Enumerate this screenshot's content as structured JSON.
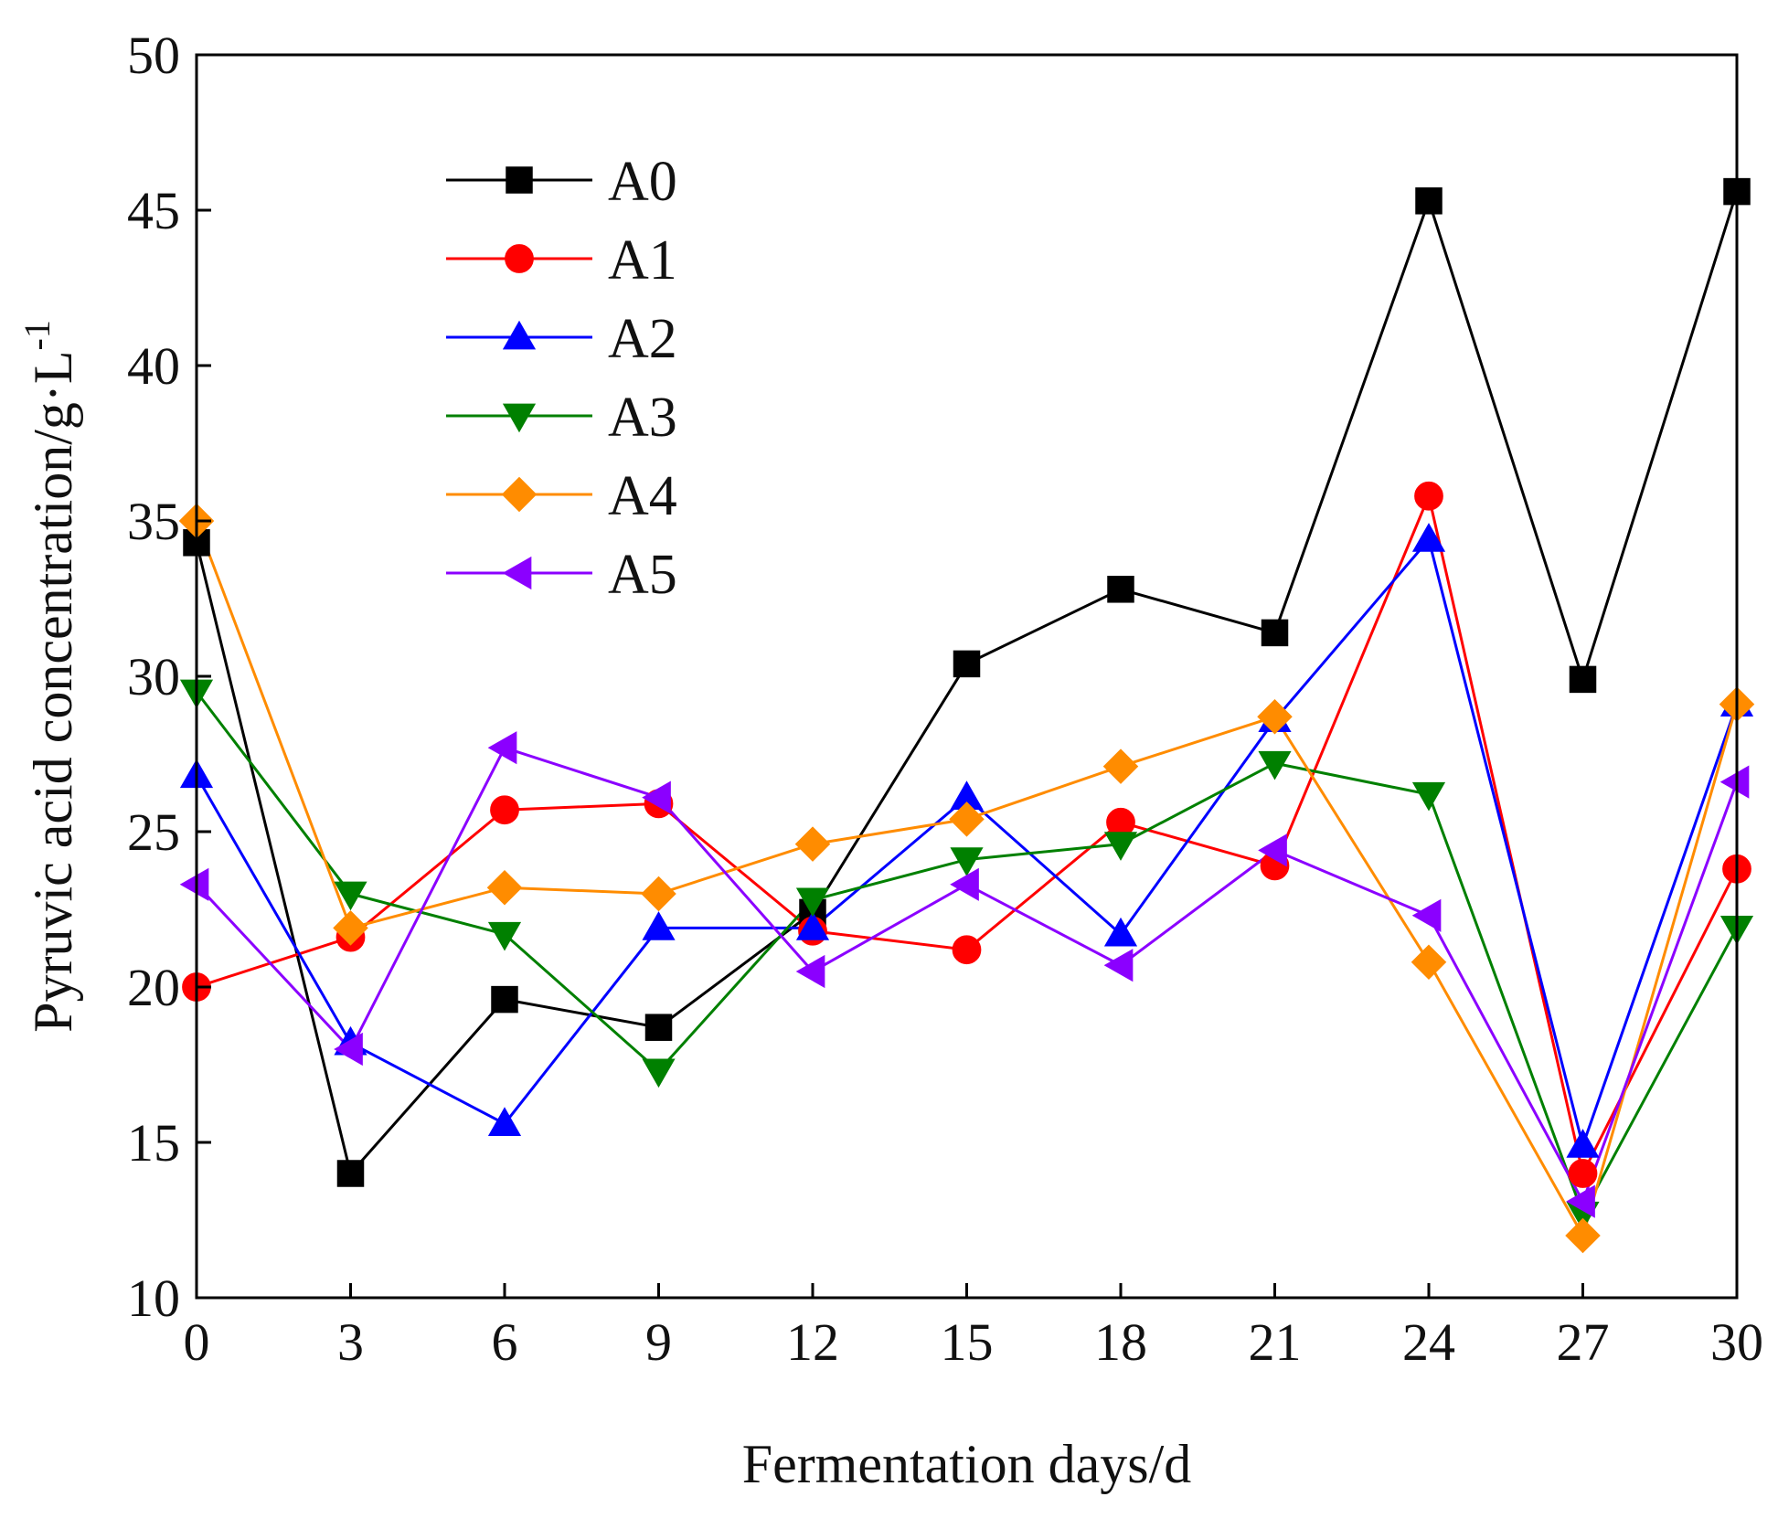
{
  "chart_data": {
    "type": "line",
    "title": "",
    "xlabel": "Fermentation days/d",
    "ylabel": "Pyruvic acid concentration/g·L",
    "ylabel_superscript": "-1",
    "xlim": [
      0,
      30
    ],
    "ylim": [
      10,
      50
    ],
    "x": [
      0,
      3,
      6,
      9,
      12,
      15,
      18,
      21,
      24,
      27,
      30
    ],
    "x_ticks": [
      "0",
      "3",
      "6",
      "9",
      "12",
      "15",
      "18",
      "21",
      "24",
      "27",
      "30"
    ],
    "y_ticks": [
      "10",
      "15",
      "20",
      "25",
      "30",
      "35",
      "40",
      "45",
      "50"
    ],
    "grid": false,
    "legend_position": "top-left",
    "series": [
      {
        "name": "A0",
        "color": "#000000",
        "marker": "square",
        "values": [
          34.3,
          14.0,
          19.6,
          18.7,
          22.4,
          30.4,
          32.8,
          31.4,
          45.3,
          29.9,
          45.6
        ]
      },
      {
        "name": "A1",
        "color": "#ff0000",
        "marker": "circle",
        "values": [
          20.0,
          21.6,
          25.7,
          25.9,
          21.8,
          21.2,
          25.3,
          23.9,
          35.8,
          14.0,
          23.8
        ]
      },
      {
        "name": "A2",
        "color": "#0000ff",
        "marker": "triangle-up",
        "values": [
          26.8,
          18.2,
          15.6,
          21.9,
          21.9,
          26.1,
          21.7,
          28.6,
          34.4,
          14.9,
          29.1
        ]
      },
      {
        "name": "A3",
        "color": "#008000",
        "marker": "triangle-down",
        "values": [
          29.5,
          23.0,
          21.7,
          17.3,
          22.8,
          24.1,
          24.6,
          27.2,
          26.2,
          12.7,
          21.9
        ]
      },
      {
        "name": "A4",
        "color": "#ff8c00",
        "marker": "diamond",
        "values": [
          35.0,
          21.9,
          23.2,
          23.0,
          24.6,
          25.4,
          27.1,
          28.7,
          20.8,
          12.0,
          29.1
        ]
      },
      {
        "name": "A5",
        "color": "#8b00ff",
        "marker": "triangle-left",
        "values": [
          23.3,
          18.0,
          27.7,
          26.1,
          20.5,
          23.3,
          20.7,
          24.4,
          22.3,
          13.1,
          26.6
        ]
      }
    ]
  }
}
